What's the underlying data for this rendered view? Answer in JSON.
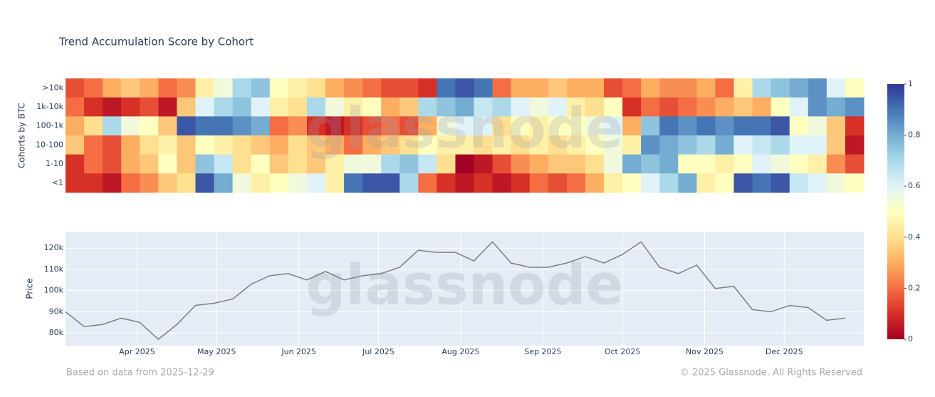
{
  "chart_data": [
    {
      "type": "heatmap",
      "title": "Trend Accumulation Score by Cohort",
      "y_label": "Cohorts by BTC",
      "watermark": "glassnode",
      "rows": [
        ">10k",
        "1k-10k",
        "100-1k",
        "10-100",
        "1-10",
        "<1"
      ],
      "x": [
        "2025-03-05",
        "2025-03-12",
        "2025-03-19",
        "2025-03-26",
        "2025-04-02",
        "2025-04-09",
        "2025-04-16",
        "2025-04-23",
        "2025-04-30",
        "2025-05-07",
        "2025-05-14",
        "2025-05-21",
        "2025-05-28",
        "2025-06-04",
        "2025-06-11",
        "2025-06-18",
        "2025-06-25",
        "2025-07-02",
        "2025-07-09",
        "2025-07-16",
        "2025-07-23",
        "2025-07-30",
        "2025-08-06",
        "2025-08-13",
        "2025-08-20",
        "2025-08-27",
        "2025-09-03",
        "2025-09-10",
        "2025-09-17",
        "2025-09-24",
        "2025-10-01",
        "2025-10-08",
        "2025-10-15",
        "2025-10-22",
        "2025-10-29",
        "2025-11-05",
        "2025-11-12",
        "2025-11-19",
        "2025-11-26",
        "2025-12-03",
        "2025-12-10",
        "2025-12-17",
        "2025-12-24"
      ],
      "xlim": [
        "2025-03-05",
        "2025-12-31"
      ],
      "z": [
        [
          0.15,
          0.2,
          0.3,
          0.35,
          0.3,
          0.2,
          0.25,
          0.45,
          0.55,
          0.7,
          0.75,
          0.5,
          0.45,
          0.4,
          0.3,
          0.25,
          0.2,
          0.15,
          0.15,
          0.1,
          0.9,
          0.95,
          0.9,
          0.2,
          0.3,
          0.3,
          0.35,
          0.3,
          0.3,
          0.15,
          0.2,
          0.3,
          0.25,
          0.25,
          0.3,
          0.2,
          0.45,
          0.7,
          0.75,
          0.8,
          0.85,
          0.6,
          0.5
        ],
        [
          0.2,
          0.1,
          0.05,
          0.1,
          0.15,
          0.05,
          0.35,
          0.6,
          0.7,
          0.75,
          0.6,
          0.45,
          0.4,
          0.7,
          0.55,
          0.45,
          0.5,
          0.3,
          0.35,
          0.7,
          0.75,
          0.8,
          0.65,
          0.7,
          0.6,
          0.55,
          0.6,
          0.45,
          0.4,
          0.5,
          0.1,
          0.2,
          0.15,
          0.2,
          0.25,
          0.3,
          0.35,
          0.3,
          0.5,
          0.6,
          0.85,
          0.8,
          0.85
        ],
        [
          0.3,
          0.4,
          0.7,
          0.55,
          0.5,
          0.35,
          0.95,
          0.9,
          0.9,
          0.85,
          0.8,
          0.2,
          0.25,
          0.1,
          0.05,
          0.1,
          0.15,
          0.2,
          0.15,
          0.3,
          0.55,
          0.6,
          0.6,
          0.4,
          0.5,
          0.45,
          0.5,
          0.5,
          0.55,
          0.6,
          0.3,
          0.75,
          0.9,
          0.85,
          0.9,
          0.85,
          0.9,
          0.9,
          0.95,
          0.5,
          0.55,
          0.35,
          0.1
        ],
        [
          0.35,
          0.2,
          0.15,
          0.3,
          0.4,
          0.45,
          0.35,
          0.5,
          0.45,
          0.4,
          0.35,
          0.3,
          0.4,
          0.35,
          0.3,
          0.2,
          0.3,
          0.35,
          0.4,
          0.5,
          0.45,
          0.45,
          0.4,
          0.45,
          0.4,
          0.45,
          0.4,
          0.45,
          0.5,
          0.55,
          0.45,
          0.85,
          0.8,
          0.75,
          0.7,
          0.8,
          0.6,
          0.65,
          0.7,
          0.6,
          0.6,
          0.35,
          0.05
        ],
        [
          0.1,
          0.2,
          0.15,
          0.3,
          0.35,
          0.5,
          0.35,
          0.75,
          0.65,
          0.4,
          0.5,
          0.35,
          0.4,
          0.35,
          0.45,
          0.55,
          0.55,
          0.7,
          0.75,
          0.65,
          0.4,
          0,
          0.05,
          0.15,
          0.25,
          0.3,
          0.35,
          0.35,
          0.4,
          0.55,
          0.8,
          0.75,
          0.8,
          0.5,
          0.5,
          0.45,
          0.5,
          0.6,
          0.55,
          0.5,
          0.45,
          0.25,
          0.15
        ],
        [
          0.1,
          0.1,
          0.05,
          0.2,
          0.25,
          0.35,
          0.4,
          0.95,
          0.8,
          0.55,
          0.45,
          0.5,
          0.55,
          0.6,
          0.45,
          0.9,
          0.95,
          0.95,
          0.7,
          0.2,
          0.1,
          0.05,
          0.1,
          0.05,
          0.1,
          0.2,
          0.15,
          0.2,
          0.3,
          0.45,
          0.5,
          0.6,
          0.7,
          0.8,
          0.45,
          0.5,
          0.95,
          0.9,
          0.95,
          0.65,
          0.6,
          0.55,
          0.5
        ]
      ],
      "zlim": [
        0,
        1
      ],
      "zticks": [
        0,
        0.2,
        0.4,
        0.6,
        0.8,
        1
      ],
      "colorscale": [
        "#a50026",
        "#d73027",
        "#f46d43",
        "#fdae61",
        "#fee090",
        "#ffffbf",
        "#e0f3f8",
        "#abd9e9",
        "#74add1",
        "#4575b4",
        "#313695"
      ]
    },
    {
      "type": "line",
      "y_label": "Price",
      "watermark": "glassnode",
      "color": "#7f7f7f",
      "grid": true,
      "x": [
        "2025-03-05",
        "2025-03-12",
        "2025-03-19",
        "2025-03-26",
        "2025-04-02",
        "2025-04-09",
        "2025-04-16",
        "2025-04-23",
        "2025-04-30",
        "2025-05-07",
        "2025-05-14",
        "2025-05-21",
        "2025-05-28",
        "2025-06-04",
        "2025-06-11",
        "2025-06-18",
        "2025-06-25",
        "2025-07-02",
        "2025-07-09",
        "2025-07-16",
        "2025-07-23",
        "2025-07-30",
        "2025-08-06",
        "2025-08-13",
        "2025-08-20",
        "2025-08-27",
        "2025-09-03",
        "2025-09-10",
        "2025-09-17",
        "2025-09-24",
        "2025-10-01",
        "2025-10-08",
        "2025-10-15",
        "2025-10-22",
        "2025-10-29",
        "2025-11-05",
        "2025-11-12",
        "2025-11-19",
        "2025-11-26",
        "2025-12-03",
        "2025-12-10",
        "2025-12-17",
        "2025-12-24"
      ],
      "values": [
        90000,
        83000,
        84000,
        87000,
        85000,
        77000,
        84000,
        93000,
        94000,
        96000,
        103000,
        107000,
        108000,
        105000,
        109000,
        105000,
        107000,
        108000,
        111000,
        119000,
        118000,
        118000,
        114000,
        123000,
        113000,
        111000,
        111000,
        113000,
        116000,
        113000,
        117000,
        123000,
        111000,
        108000,
        112000,
        101000,
        102000,
        91000,
        90000,
        93000,
        92000,
        86000,
        87000
      ],
      "xlim": [
        "2025-03-05",
        "2025-12-31"
      ],
      "xticks": [
        {
          "value": "2025-04-01",
          "label": "Apr 2025"
        },
        {
          "value": "2025-05-01",
          "label": "May 2025"
        },
        {
          "value": "2025-06-01",
          "label": "Jun 2025"
        },
        {
          "value": "2025-07-01",
          "label": "Jul 2025"
        },
        {
          "value": "2025-08-01",
          "label": "Aug 2025"
        },
        {
          "value": "2025-09-01",
          "label": "Sep 2025"
        },
        {
          "value": "2025-10-01",
          "label": "Oct 2025"
        },
        {
          "value": "2025-11-01",
          "label": "Nov 2025"
        },
        {
          "value": "2025-12-01",
          "label": "Dec 2025"
        }
      ],
      "ylim": [
        74000,
        127800
      ],
      "yticks": [
        {
          "value": 80000,
          "label": "80k"
        },
        {
          "value": 90000,
          "label": "90k"
        },
        {
          "value": 100000,
          "label": "100k"
        },
        {
          "value": 110000,
          "label": "110k"
        },
        {
          "value": 120000,
          "label": "120k"
        }
      ]
    }
  ],
  "footer": {
    "source": "Based on data from 2025-12-29",
    "copyright": "© 2025 Glassnode. All Rights Reserved"
  }
}
